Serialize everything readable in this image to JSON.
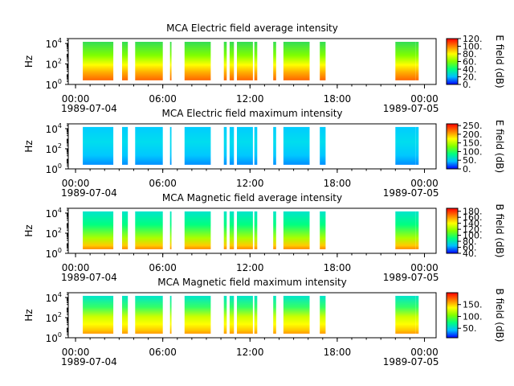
{
  "chart_data": [
    {
      "type": "heatmap",
      "title": "MCA  Electric field average intensity",
      "ylabel": "Hz",
      "y_ticks": [
        "10",
        "10",
        "10"
      ],
      "y_tick_exponents": [
        "0",
        "2",
        "4"
      ],
      "ylim": [
        1,
        30000
      ],
      "yscale": "log",
      "x_ticks": [
        "00:00",
        "06:00",
        "12:00",
        "18:00",
        "00:00"
      ],
      "x_ticks_hours": [
        0,
        6,
        12,
        18,
        24
      ],
      "x_date_start": "1989-07-04",
      "x_date_end": "1989-07-05",
      "colorbar_label": "E field (dB)",
      "colorbar_ticks": [
        "0.",
        "20.",
        "40.",
        "60.",
        "80.",
        "100.",
        "120."
      ],
      "colorbar_range": [
        0,
        120
      ],
      "colormap": [
        "#0000ff",
        "#00bfff",
        "#00ff7f",
        "#7fff00",
        "#ffff00",
        "#ff7f00",
        "#ff0000"
      ],
      "data_intervals_hours": [
        [
          0.5,
          2.6
        ],
        [
          3.2,
          3.6
        ],
        [
          4.1,
          6.0
        ],
        [
          6.5,
          6.6
        ],
        [
          7.5,
          9.3
        ],
        [
          10.2,
          10.4
        ],
        [
          10.6,
          10.9
        ],
        [
          11.1,
          12.2
        ],
        [
          12.3,
          12.5
        ],
        [
          13.6,
          13.8
        ],
        [
          14.3,
          16.1
        ],
        [
          16.8,
          17.2
        ],
        [
          22.0,
          23.4
        ],
        [
          23.4,
          23.6
        ]
      ],
      "intensity_profile": "high (yellow–red) at low frequencies, green at high frequencies"
    },
    {
      "type": "heatmap",
      "title": "MCA  Electric field maximum intensity",
      "ylabel": "Hz",
      "y_ticks": [
        "10",
        "10",
        "10"
      ],
      "y_tick_exponents": [
        "0",
        "2",
        "4"
      ],
      "ylim": [
        1,
        30000
      ],
      "yscale": "log",
      "x_ticks": [
        "00:00",
        "06:00",
        "12:00",
        "18:00",
        "00:00"
      ],
      "x_ticks_hours": [
        0,
        6,
        12,
        18,
        24
      ],
      "x_date_start": "1989-07-04",
      "x_date_end": "1989-07-05",
      "colorbar_label": "E field (dB)",
      "colorbar_ticks": [
        "0.",
        "50.",
        "100.",
        "150.",
        "200.",
        "250."
      ],
      "colorbar_range": [
        0,
        260
      ],
      "colormap": [
        "#0000ff",
        "#00bfff",
        "#00ff7f",
        "#7fff00",
        "#ffff00",
        "#ff7f00",
        "#ff0000"
      ],
      "data_intervals_hours": [
        [
          0.5,
          2.6
        ],
        [
          3.2,
          3.6
        ],
        [
          4.1,
          6.0
        ],
        [
          6.5,
          6.6
        ],
        [
          7.5,
          9.3
        ],
        [
          10.2,
          10.4
        ],
        [
          10.6,
          10.9
        ],
        [
          11.1,
          12.2
        ],
        [
          12.3,
          12.5
        ],
        [
          13.6,
          13.8
        ],
        [
          14.3,
          16.1
        ],
        [
          16.8,
          17.2
        ],
        [
          22.0,
          23.4
        ],
        [
          23.4,
          23.6
        ]
      ],
      "intensity_profile": "mostly cyan–blue, dark blue streaks near 10:30 and 23:30"
    },
    {
      "type": "heatmap",
      "title": "MCA  Magnetic field average intensity",
      "ylabel": "Hz",
      "y_ticks": [
        "10",
        "10",
        "10"
      ],
      "y_tick_exponents": [
        "0",
        "2",
        "4"
      ],
      "ylim": [
        1,
        30000
      ],
      "yscale": "log",
      "x_ticks": [
        "00:00",
        "06:00",
        "12:00",
        "18:00",
        "00:00"
      ],
      "x_ticks_hours": [
        0,
        6,
        12,
        18,
        24
      ],
      "x_date_start": "1989-07-04",
      "x_date_end": "1989-07-05",
      "colorbar_label": "B field (dB)",
      "colorbar_ticks": [
        "40.",
        "60.",
        "80.",
        "100.",
        "120.",
        "140.",
        "160.",
        "180."
      ],
      "colorbar_range": [
        40,
        190
      ],
      "colormap": [
        "#0000ff",
        "#00bfff",
        "#00ff7f",
        "#7fff00",
        "#ffff00",
        "#ff7f00",
        "#ff0000"
      ],
      "data_intervals_hours": [
        [
          0.5,
          2.6
        ],
        [
          3.2,
          3.6
        ],
        [
          4.1,
          6.0
        ],
        [
          6.5,
          6.6
        ],
        [
          7.5,
          9.3
        ],
        [
          10.2,
          10.4
        ],
        [
          10.6,
          10.9
        ],
        [
          11.1,
          12.2
        ],
        [
          12.3,
          12.5
        ],
        [
          13.6,
          13.8
        ],
        [
          14.3,
          16.1
        ],
        [
          16.8,
          17.2
        ],
        [
          22.0,
          23.4
        ],
        [
          23.4,
          23.6
        ]
      ],
      "intensity_profile": "cyan at high frequencies, green to yellow at low frequencies"
    },
    {
      "type": "heatmap",
      "title": "MCA  Magnetic field maximum intensity",
      "ylabel": "Hz",
      "y_ticks": [
        "10",
        "10",
        "10"
      ],
      "y_tick_exponents": [
        "0",
        "2",
        "4"
      ],
      "ylim": [
        1,
        30000
      ],
      "yscale": "log",
      "x_ticks": [
        "00:00",
        "06:00",
        "12:00",
        "18:00",
        "00:00"
      ],
      "x_ticks_hours": [
        0,
        6,
        12,
        18,
        24
      ],
      "x_date_start": "1989-07-04",
      "x_date_end": "1989-07-05",
      "colorbar_label": "B field (dB)",
      "colorbar_ticks": [
        "50.",
        "100.",
        "150."
      ],
      "colorbar_range": [
        10,
        200
      ],
      "colormap": [
        "#0000ff",
        "#00bfff",
        "#00ff7f",
        "#7fff00",
        "#ffff00",
        "#ff7f00",
        "#ff0000"
      ],
      "data_intervals_hours": [
        [
          0.5,
          2.6
        ],
        [
          3.2,
          3.6
        ],
        [
          4.1,
          6.0
        ],
        [
          6.5,
          6.6
        ],
        [
          7.5,
          9.3
        ],
        [
          10.2,
          10.4
        ],
        [
          10.6,
          10.9
        ],
        [
          11.1,
          12.2
        ],
        [
          12.3,
          12.5
        ],
        [
          13.6,
          13.8
        ],
        [
          14.3,
          16.1
        ],
        [
          16.8,
          17.2
        ],
        [
          22.0,
          23.4
        ],
        [
          23.4,
          23.6
        ]
      ],
      "intensity_profile": "cyan at high frequencies, green–yellow bands at low frequencies"
    }
  ]
}
